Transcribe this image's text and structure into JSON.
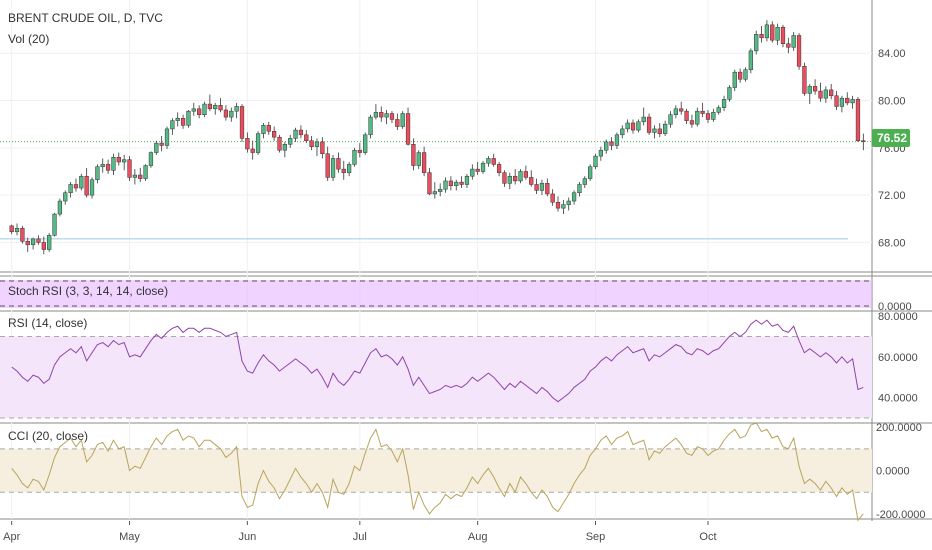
{
  "header": {
    "symbol": "BRENT CRUDE OIL, D, TVC",
    "volume": "Vol (20)"
  },
  "price_badge": "76.52",
  "colors": {
    "up": "#53b987",
    "down": "#eb4d5c",
    "stoch_bg": "#e8b5ff",
    "rsi_bg": "#f4e5fb",
    "cci_bg": "#f6efe0",
    "rsi_line": "#8e44ad",
    "cci_line": "#b8a45c",
    "badge": "#4caf50"
  },
  "chart_data": [
    {
      "type": "candlestick",
      "title": "BRENT CRUDE OIL, D, TVC",
      "y_ticks": [
        "84.00",
        "80.00",
        "76.00",
        "72.00",
        "68.00"
      ],
      "ylim": [
        65.5,
        88.5
      ],
      "x_ticks": [
        "Apr",
        "May",
        "Jun",
        "Jul",
        "Aug",
        "Sep",
        "Oct"
      ],
      "last_price": 76.52,
      "support_line": 68.3,
      "candles": [
        [
          69.4,
          69.5,
          68.7,
          68.9
        ],
        [
          68.9,
          69.6,
          68.6,
          69.2
        ],
        [
          69.2,
          69.4,
          67.9,
          68.1
        ],
        [
          68.1,
          68.4,
          67.2,
          67.8
        ],
        [
          67.8,
          68.4,
          67.4,
          68.3
        ],
        [
          68.3,
          68.6,
          67.8,
          68.0
        ],
        [
          68.0,
          68.5,
          67.0,
          67.4
        ],
        [
          67.4,
          68.8,
          67.2,
          68.6
        ],
        [
          68.6,
          70.5,
          68.5,
          70.4
        ],
        [
          70.4,
          71.7,
          70.2,
          71.5
        ],
        [
          71.5,
          72.4,
          71.2,
          72.2
        ],
        [
          72.2,
          73.1,
          71.8,
          72.9
        ],
        [
          72.9,
          73.4,
          72.3,
          72.6
        ],
        [
          72.6,
          73.8,
          72.4,
          73.6
        ],
        [
          73.6,
          74.3,
          71.8,
          72.0
        ],
        [
          72.0,
          73.5,
          71.7,
          73.3
        ],
        [
          73.3,
          74.6,
          73.0,
          74.4
        ],
        [
          74.4,
          75.1,
          73.9,
          74.6
        ],
        [
          74.6,
          75.0,
          73.8,
          74.1
        ],
        [
          74.1,
          75.5,
          73.7,
          75.2
        ],
        [
          75.2,
          75.6,
          74.5,
          74.8
        ],
        [
          74.8,
          75.4,
          74.1,
          75.0
        ],
        [
          75.0,
          75.3,
          73.2,
          73.5
        ],
        [
          73.5,
          74.2,
          72.9,
          73.7
        ],
        [
          73.7,
          74.3,
          73.1,
          73.4
        ],
        [
          73.4,
          74.6,
          73.2,
          74.5
        ],
        [
          74.5,
          75.7,
          74.3,
          75.6
        ],
        [
          75.6,
          76.6,
          75.4,
          76.4
        ],
        [
          76.4,
          77.0,
          75.7,
          76.2
        ],
        [
          76.2,
          77.8,
          75.9,
          77.6
        ],
        [
          77.6,
          78.5,
          77.1,
          78.3
        ],
        [
          78.3,
          79.0,
          77.8,
          78.5
        ],
        [
          78.5,
          78.8,
          77.6,
          77.9
        ],
        [
          77.9,
          79.2,
          77.7,
          79.1
        ],
        [
          79.1,
          79.8,
          78.7,
          79.3
        ],
        [
          79.3,
          79.6,
          78.5,
          78.8
        ],
        [
          78.8,
          79.9,
          78.6,
          79.7
        ],
        [
          79.7,
          80.5,
          79.1,
          79.3
        ],
        [
          79.3,
          79.8,
          78.8,
          79.6
        ],
        [
          79.6,
          80.2,
          79.0,
          79.2
        ],
        [
          79.2,
          79.6,
          78.3,
          78.6
        ],
        [
          78.6,
          79.4,
          78.2,
          79.1
        ],
        [
          79.1,
          79.8,
          78.5,
          79.5
        ],
        [
          79.5,
          79.7,
          76.5,
          76.8
        ],
        [
          76.8,
          77.3,
          75.6,
          75.9
        ],
        [
          75.9,
          76.6,
          75.0,
          75.6
        ],
        [
          75.6,
          77.4,
          75.4,
          77.2
        ],
        [
          77.2,
          78.1,
          76.8,
          77.9
        ],
        [
          77.9,
          78.2,
          77.1,
          77.4
        ],
        [
          77.4,
          77.8,
          76.6,
          76.9
        ],
        [
          76.9,
          77.1,
          75.6,
          75.8
        ],
        [
          75.8,
          76.5,
          75.2,
          76.3
        ],
        [
          76.3,
          77.1,
          76.0,
          76.8
        ],
        [
          76.8,
          77.7,
          76.5,
          77.5
        ],
        [
          77.5,
          77.9,
          76.8,
          77.1
        ],
        [
          77.1,
          77.5,
          76.4,
          76.6
        ],
        [
          76.6,
          77.0,
          75.8,
          76.1
        ],
        [
          76.1,
          76.8,
          75.3,
          76.5
        ],
        [
          76.5,
          76.9,
          75.1,
          75.5
        ],
        [
          75.5,
          76.1,
          73.2,
          73.5
        ],
        [
          73.5,
          75.4,
          73.2,
          75.1
        ],
        [
          75.1,
          75.6,
          73.9,
          74.2
        ],
        [
          74.2,
          74.9,
          73.3,
          73.9
        ],
        [
          73.9,
          74.8,
          73.6,
          74.6
        ],
        [
          74.6,
          76.0,
          74.4,
          75.8
        ],
        [
          75.8,
          76.4,
          75.2,
          75.6
        ],
        [
          75.6,
          77.3,
          75.4,
          77.1
        ],
        [
          77.1,
          78.8,
          76.8,
          78.6
        ],
        [
          78.6,
          79.7,
          78.4,
          79.0
        ],
        [
          79.0,
          79.5,
          78.2,
          78.6
        ],
        [
          78.6,
          79.2,
          78.0,
          78.9
        ],
        [
          78.9,
          79.1,
          78.1,
          78.4
        ],
        [
          78.4,
          78.9,
          77.5,
          77.8
        ],
        [
          77.8,
          79.1,
          77.6,
          78.9
        ],
        [
          78.9,
          79.4,
          76.2,
          76.3
        ],
        [
          76.3,
          76.8,
          74.1,
          74.5
        ],
        [
          74.5,
          75.8,
          74.2,
          75.6
        ],
        [
          75.6,
          76.1,
          73.6,
          73.9
        ],
        [
          73.9,
          74.3,
          72.0,
          72.1
        ],
        [
          72.1,
          73.1,
          71.7,
          72.3
        ],
        [
          72.3,
          73.0,
          71.9,
          72.5
        ],
        [
          72.5,
          73.5,
          72.2,
          73.2
        ],
        [
          73.2,
          73.6,
          72.4,
          72.8
        ],
        [
          72.8,
          73.3,
          72.4,
          73.1
        ],
        [
          73.1,
          73.6,
          72.6,
          72.9
        ],
        [
          72.9,
          73.8,
          72.6,
          73.6
        ],
        [
          73.6,
          74.6,
          73.3,
          74.2
        ],
        [
          74.2,
          74.8,
          73.7,
          74.0
        ],
        [
          74.0,
          74.9,
          73.8,
          74.7
        ],
        [
          74.7,
          75.3,
          74.4,
          75.1
        ],
        [
          75.1,
          75.5,
          74.4,
          74.6
        ],
        [
          74.6,
          74.8,
          73.6,
          73.9
        ],
        [
          73.9,
          74.1,
          72.7,
          73.0
        ],
        [
          73.0,
          73.9,
          72.5,
          73.6
        ],
        [
          73.6,
          74.2,
          72.9,
          73.2
        ],
        [
          73.2,
          74.2,
          73.0,
          74.0
        ],
        [
          74.0,
          74.5,
          73.3,
          73.5
        ],
        [
          73.5,
          74.1,
          72.7,
          72.9
        ],
        [
          72.9,
          73.4,
          72.1,
          72.4
        ],
        [
          72.4,
          73.3,
          72.0,
          73.0
        ],
        [
          73.0,
          73.4,
          71.9,
          72.1
        ],
        [
          72.1,
          72.5,
          71.1,
          71.4
        ],
        [
          71.4,
          71.9,
          70.6,
          70.9
        ],
        [
          70.9,
          71.6,
          70.4,
          71.2
        ],
        [
          71.2,
          71.8,
          70.7,
          71.5
        ],
        [
          71.5,
          72.4,
          71.2,
          72.2
        ],
        [
          72.2,
          73.1,
          71.9,
          72.9
        ],
        [
          72.9,
          73.6,
          72.6,
          73.4
        ],
        [
          73.4,
          74.6,
          73.2,
          74.4
        ],
        [
          74.4,
          75.5,
          74.2,
          75.3
        ],
        [
          75.3,
          76.1,
          74.9,
          75.8
        ],
        [
          75.8,
          76.7,
          75.5,
          76.5
        ],
        [
          76.5,
          76.9,
          75.8,
          76.2
        ],
        [
          76.2,
          77.3,
          75.9,
          77.1
        ],
        [
          77.1,
          77.9,
          76.8,
          77.6
        ],
        [
          77.6,
          78.4,
          77.3,
          78.1
        ],
        [
          78.1,
          78.4,
          77.2,
          77.5
        ],
        [
          77.5,
          78.4,
          77.3,
          78.2
        ],
        [
          78.2,
          79.4,
          77.9,
          78.6
        ],
        [
          78.6,
          78.9,
          77.1,
          77.3
        ],
        [
          77.3,
          77.9,
          76.8,
          77.6
        ],
        [
          77.6,
          78.1,
          76.9,
          77.2
        ],
        [
          77.2,
          78.3,
          77.0,
          78.0
        ],
        [
          78.0,
          79.1,
          77.7,
          78.8
        ],
        [
          78.8,
          79.6,
          78.5,
          79.3
        ],
        [
          79.3,
          79.9,
          78.8,
          79.1
        ],
        [
          79.1,
          79.3,
          78.0,
          78.3
        ],
        [
          78.3,
          78.8,
          77.7,
          78.0
        ],
        [
          78.0,
          79.4,
          77.8,
          79.1
        ],
        [
          79.1,
          79.8,
          78.6,
          78.9
        ],
        [
          78.9,
          79.2,
          78.1,
          78.4
        ],
        [
          78.4,
          79.3,
          78.2,
          79.0
        ],
        [
          79.0,
          79.6,
          78.8,
          79.4
        ],
        [
          79.4,
          80.4,
          79.1,
          80.1
        ],
        [
          80.1,
          81.3,
          79.9,
          81.1
        ],
        [
          81.1,
          82.6,
          80.8,
          82.4
        ],
        [
          82.4,
          82.7,
          81.5,
          81.8
        ],
        [
          81.8,
          82.8,
          81.6,
          82.6
        ],
        [
          82.6,
          84.4,
          82.3,
          84.2
        ],
        [
          84.2,
          85.9,
          83.9,
          85.6
        ],
        [
          85.6,
          86.3,
          84.9,
          85.3
        ],
        [
          85.3,
          86.8,
          85.0,
          86.4
        ],
        [
          86.4,
          86.7,
          84.9,
          85.1
        ],
        [
          85.1,
          86.5,
          84.7,
          86.2
        ],
        [
          86.2,
          86.4,
          84.5,
          84.8
        ],
        [
          84.8,
          85.3,
          84.0,
          84.5
        ],
        [
          84.5,
          85.8,
          84.2,
          85.5
        ],
        [
          85.5,
          85.7,
          82.6,
          82.9
        ],
        [
          82.9,
          83.2,
          80.4,
          80.6
        ],
        [
          80.6,
          81.4,
          79.7,
          81.2
        ],
        [
          81.2,
          81.8,
          80.5,
          80.8
        ],
        [
          80.8,
          81.5,
          79.9,
          80.2
        ],
        [
          80.2,
          81.2,
          79.8,
          80.9
        ],
        [
          80.9,
          81.4,
          80.1,
          80.4
        ],
        [
          80.4,
          80.8,
          79.2,
          79.5
        ],
        [
          79.5,
          80.4,
          79.0,
          80.2
        ],
        [
          80.2,
          80.7,
          79.6,
          79.8
        ],
        [
          79.8,
          80.4,
          79.3,
          80.1
        ],
        [
          80.1,
          80.3,
          76.5,
          76.6
        ],
        [
          76.6,
          77.2,
          75.8,
          76.52
        ]
      ]
    },
    {
      "type": "line",
      "title": "Stoch RSI (3, 3, 14, 14, close)",
      "y_ticks": [
        "0.0000"
      ],
      "ylim": [
        -10,
        110
      ]
    },
    {
      "type": "line",
      "title": "RSI (14, close)",
      "y_ticks": [
        "80.0000",
        "60.0000",
        "40.0000"
      ],
      "ylim": [
        30,
        82
      ],
      "values": [
        55,
        53,
        50,
        48,
        51,
        50,
        47,
        49,
        56,
        60,
        62,
        64,
        62,
        65,
        58,
        62,
        66,
        67,
        65,
        68,
        66,
        67,
        60,
        61,
        60,
        64,
        68,
        71,
        69,
        72,
        74,
        75,
        72,
        74,
        74,
        72,
        74,
        74,
        73,
        72,
        70,
        71,
        72,
        58,
        53,
        52,
        57,
        61,
        58,
        56,
        53,
        55,
        57,
        59,
        57,
        55,
        52,
        54,
        50,
        45,
        52,
        48,
        46,
        49,
        53,
        52,
        57,
        62,
        64,
        60,
        61,
        59,
        56,
        60,
        54,
        46,
        50,
        46,
        42,
        43,
        44,
        46,
        45,
        46,
        45,
        47,
        50,
        48,
        50,
        52,
        50,
        47,
        44,
        47,
        45,
        48,
        46,
        44,
        42,
        45,
        43,
        40,
        38,
        40,
        42,
        45,
        47,
        49,
        53,
        55,
        58,
        60,
        58,
        61,
        63,
        65,
        62,
        63,
        64,
        58,
        61,
        60,
        62,
        64,
        66,
        65,
        62,
        61,
        64,
        63,
        61,
        63,
        64,
        67,
        70,
        72,
        70,
        72,
        76,
        78,
        76,
        78,
        75,
        76,
        73,
        72,
        75,
        68,
        62,
        64,
        62,
        60,
        62,
        60,
        57,
        60,
        57,
        59,
        44,
        45
      ]
    },
    {
      "type": "line",
      "title": "CCI (20, close)",
      "y_ticks": [
        "200.0000",
        "0.0000",
        "-200.0000"
      ],
      "ylim": [
        -210,
        215
      ],
      "values": [
        10,
        -20,
        -60,
        -80,
        -40,
        -50,
        -90,
        -20,
        60,
        110,
        130,
        150,
        110,
        140,
        40,
        70,
        120,
        130,
        90,
        140,
        100,
        110,
        0,
        20,
        10,
        60,
        110,
        150,
        120,
        160,
        180,
        190,
        140,
        160,
        150,
        110,
        140,
        140,
        120,
        100,
        60,
        80,
        110,
        -120,
        -170,
        -160,
        -60,
        0,
        -50,
        -80,
        -130,
        -90,
        -40,
        10,
        -30,
        -60,
        -100,
        -60,
        -100,
        -170,
        -40,
        -100,
        -110,
        -60,
        20,
        0,
        80,
        150,
        190,
        110,
        120,
        90,
        40,
        100,
        -20,
        -180,
        -100,
        -160,
        -200,
        -170,
        -150,
        -110,
        -130,
        -110,
        -120,
        -80,
        -30,
        -60,
        -20,
        10,
        -30,
        -80,
        -120,
        -60,
        -100,
        -30,
        -60,
        -100,
        -130,
        -90,
        -120,
        -170,
        -190,
        -150,
        -110,
        -60,
        -20,
        10,
        70,
        100,
        140,
        160,
        120,
        150,
        160,
        180,
        120,
        130,
        140,
        50,
        90,
        80,
        110,
        130,
        150,
        120,
        80,
        70,
        110,
        100,
        70,
        90,
        100,
        140,
        170,
        190,
        150,
        160,
        210,
        220,
        180,
        190,
        150,
        160,
        110,
        100,
        150,
        20,
        -60,
        -40,
        -60,
        -90,
        -50,
        -80,
        -120,
        -80,
        -110,
        -90,
        -230,
        -200
      ]
    }
  ]
}
